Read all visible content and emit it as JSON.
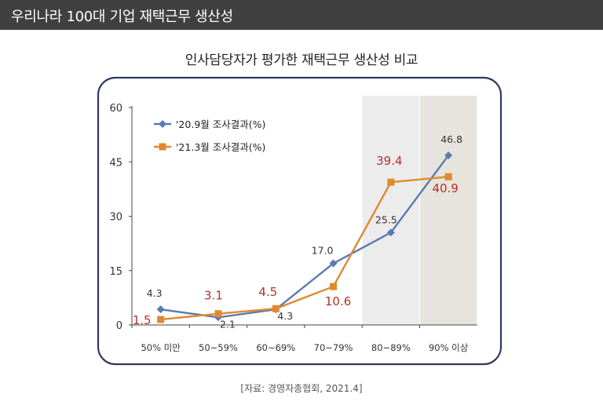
{
  "header": {
    "title": "우리나라 100대 기업 재택근무 생산성"
  },
  "source": "[자료: 경영자총협회, 2021.4]",
  "colors": {
    "header_bg": "#404040",
    "series1": "#5a7bb0",
    "series2": "#e0892e",
    "series2_label": "#b5312a",
    "frame": "#2e3a5c",
    "band1": "#ececec",
    "band2": "#e6e4dc"
  },
  "chart_data": {
    "type": "line",
    "title": "인사담당자가 평가한 재택근무 생산성 비교",
    "categories": [
      "50% 미만",
      "50~59%",
      "60~69%",
      "70~79%",
      "80~89%",
      "90% 이상"
    ],
    "ylim": [
      0,
      60
    ],
    "yticks": [
      "0",
      "15",
      "30",
      "45",
      "60"
    ],
    "ytick_values": [
      0,
      15,
      30,
      45,
      60
    ],
    "highlight_categories": [
      4,
      5
    ],
    "legend_position": "top-left",
    "series": [
      {
        "name": "'20.9월 조사결과(%)",
        "marker": "diamond",
        "values": [
          4.3,
          2.1,
          4.3,
          17.0,
          25.5,
          46.8
        ],
        "labels": [
          "4.3",
          "2.1",
          "4.3",
          "17.0",
          "25.5",
          "46.8"
        ]
      },
      {
        "name": "'21.3월 조사결과(%)",
        "marker": "square",
        "values": [
          1.5,
          3.1,
          4.5,
          10.6,
          39.4,
          40.9
        ],
        "labels": [
          "1.5",
          "3.1",
          "4.5",
          "10.6",
          "39.4",
          "40.9"
        ]
      }
    ]
  }
}
